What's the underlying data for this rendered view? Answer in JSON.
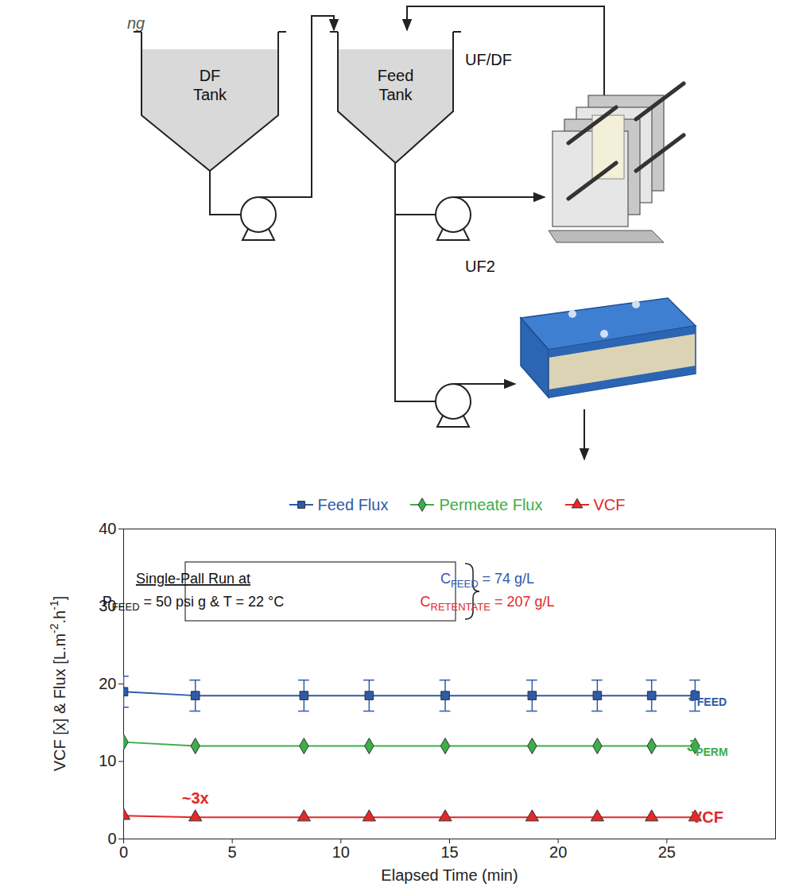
{
  "diagram": {
    "caption_fragment": "ng",
    "tanks": [
      {
        "label": "DF Tank"
      },
      {
        "label": "Feed Tank"
      }
    ],
    "units": [
      {
        "label": "UF/DF"
      },
      {
        "label": "UF2"
      }
    ]
  },
  "chart_data": {
    "type": "line",
    "x_label": "Elapsed Time (min)",
    "y_label": [
      {
        "text": "VCF [x] & Flux [L.m"
      },
      {
        "text": "-2",
        "sup": true
      },
      {
        "text": ".h"
      },
      {
        "text": "-1",
        "sup": true
      },
      {
        "text": "]"
      }
    ],
    "xlim": [
      0,
      30
    ],
    "xticks": [
      0,
      5,
      10,
      15,
      20,
      25
    ],
    "ylim": [
      0,
      40
    ],
    "yticks": [
      0,
      10,
      20,
      30,
      40
    ],
    "legend": "top",
    "x": [
      0,
      3.3,
      8.3,
      11.3,
      14.8,
      18.8,
      21.8,
      24.3,
      26.3
    ],
    "series": [
      {
        "name": "Feed Flux",
        "color": "#2e5aa8",
        "marker": "square",
        "values": [
          19,
          18.5,
          18.5,
          18.5,
          18.5,
          18.5,
          18.5,
          18.5,
          18.5
        ],
        "errors": [
          2,
          2,
          2,
          2,
          2,
          2,
          2,
          2,
          2
        ],
        "end_label": [
          {
            "text": "J"
          },
          {
            "text": "FEED",
            "sub": true
          }
        ]
      },
      {
        "name": "Permeate Flux",
        "color": "#3cae4a",
        "marker": "diamond",
        "values": [
          12.5,
          12,
          12,
          12,
          12,
          12,
          12,
          12,
          12
        ],
        "end_label": [
          {
            "text": "J"
          },
          {
            "text": "PERM",
            "sub": true
          }
        ]
      },
      {
        "name": "VCF",
        "color": "#e3282a",
        "marker": "triangle",
        "values": [
          3,
          2.8,
          2.8,
          2.8,
          2.8,
          2.8,
          2.8,
          2.8,
          2.8
        ],
        "end_label": [
          {
            "text": "VCF"
          }
        ]
      }
    ],
    "annotations": [
      {
        "text": "~3x",
        "color": "#e3282a",
        "series": "VCF"
      }
    ],
    "info_box": {
      "title": "Single-Pall Run at",
      "lines": [
        [
          {
            "text": "P"
          },
          {
            "text": "FEED",
            "sub": true
          },
          {
            "text": " = 50 psi g & T = 22 °C"
          }
        ]
      ],
      "conditions": [
        {
          "color": "#2e5aa8",
          "segments": [
            {
              "text": "C"
            },
            {
              "text": "FEED",
              "sub": true
            },
            {
              "text": " = 74 g/L"
            }
          ]
        },
        {
          "color": "#e3282a",
          "segments": [
            {
              "text": "C"
            },
            {
              "text": "RETENTATE",
              "sub": true
            },
            {
              "text": " = 207 g/L"
            }
          ]
        }
      ]
    }
  }
}
